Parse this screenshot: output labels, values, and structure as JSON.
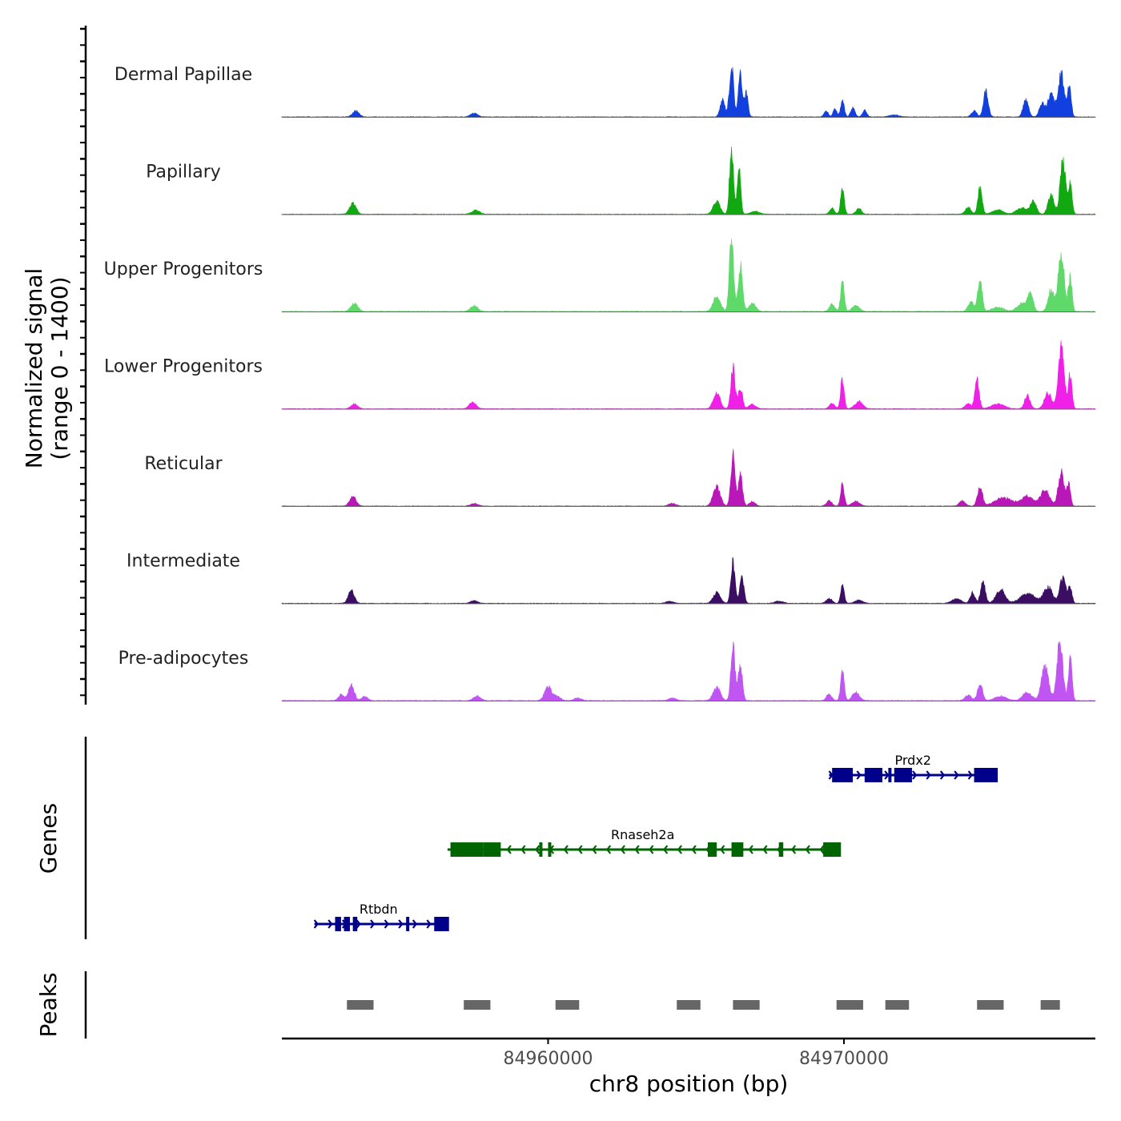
{
  "chart_data": {
    "type": "area",
    "chromosome": "chr8",
    "x_range": [
      84951000,
      84978500
    ],
    "y_range": [
      0,
      1400
    ],
    "ylabel_line1": "Normalized signal",
    "ylabel_line2": "(range 0 - 1400)",
    "xlabel": "chr8 position (bp)",
    "x_ticks": [
      {
        "value": 84960000,
        "label": "84960000"
      },
      {
        "value": 84970000,
        "label": "84970000"
      }
    ],
    "genes_label": "Genes",
    "peaks_label": "Peaks",
    "peak_regions": [
      {
        "start": 84953200,
        "end": 84954100
      },
      {
        "start": 84957150,
        "end": 84958050
      },
      {
        "start": 84960250,
        "end": 84961050
      },
      {
        "start": 84964350,
        "end": 84965150
      },
      {
        "start": 84966250,
        "end": 84967150
      },
      {
        "start": 84969750,
        "end": 84970650
      },
      {
        "start": 84971400,
        "end": 84972200
      },
      {
        "start": 84974500,
        "end": 84975400
      },
      {
        "start": 84976650,
        "end": 84977300
      }
    ],
    "genes": [
      {
        "name": "Prdx2",
        "strand": "+",
        "row": 0,
        "color": "#00008b",
        "start": 84969500,
        "end": 84974900,
        "exons": [
          [
            84969600,
            84970300
          ],
          [
            84970700,
            84971300
          ],
          [
            84971500,
            84971600
          ],
          [
            84971700,
            84972300
          ],
          [
            84974400,
            84975200
          ]
        ]
      },
      {
        "name": "Rnaseh2a",
        "strand": "-",
        "row": 1,
        "color": "#006400",
        "start": 84956600,
        "end": 84969800,
        "exons": [
          [
            84956700,
            84957800
          ],
          [
            84957800,
            84958400
          ],
          [
            84959700,
            84959800
          ],
          [
            84960000,
            84960100
          ],
          [
            84965400,
            84965700
          ],
          [
            84966200,
            84966600
          ],
          [
            84967800,
            84967950
          ],
          [
            84969300,
            84969900
          ]
        ]
      },
      {
        "name": "Rtbdn",
        "strand": "+",
        "row": 2,
        "color": "#00008b",
        "start": 84952100,
        "end": 84956600,
        "exons": [
          [
            84952800,
            84953000
          ],
          [
            84953100,
            84953300
          ],
          [
            84953400,
            84953550
          ],
          [
            84955200,
            84955300
          ],
          [
            84956150,
            84956650
          ]
        ]
      }
    ],
    "series": [
      {
        "name": "Dermal Papillae",
        "color": "#1240de",
        "peaks": [
          {
            "pos": 84953500,
            "h": 115,
            "w": 110
          },
          {
            "pos": 84957500,
            "h": 70,
            "w": 120
          },
          {
            "pos": 84966500,
            "h": 780,
            "w": 70
          },
          {
            "pos": 84966200,
            "h": 980,
            "w": 70
          },
          {
            "pos": 84966700,
            "h": 450,
            "w": 60
          },
          {
            "pos": 84965900,
            "h": 320,
            "w": 80
          },
          {
            "pos": 84969400,
            "h": 110,
            "w": 70
          },
          {
            "pos": 84969700,
            "h": 150,
            "w": 60
          },
          {
            "pos": 84969950,
            "h": 300,
            "w": 60
          },
          {
            "pos": 84970300,
            "h": 180,
            "w": 70
          },
          {
            "pos": 84970700,
            "h": 130,
            "w": 70
          },
          {
            "pos": 84971700,
            "h": 40,
            "w": 150
          },
          {
            "pos": 84974400,
            "h": 110,
            "w": 90
          },
          {
            "pos": 84974800,
            "h": 500,
            "w": 80
          },
          {
            "pos": 84976150,
            "h": 320,
            "w": 90
          },
          {
            "pos": 84976700,
            "h": 250,
            "w": 90
          },
          {
            "pos": 84977000,
            "h": 420,
            "w": 110
          },
          {
            "pos": 84977350,
            "h": 800,
            "w": 100
          },
          {
            "pos": 84977620,
            "h": 620,
            "w": 60
          }
        ]
      },
      {
        "name": "Papillary",
        "color": "#12a812",
        "peaks": [
          {
            "pos": 84953400,
            "h": 210,
            "w": 110
          },
          {
            "pos": 84957550,
            "h": 75,
            "w": 130
          },
          {
            "pos": 84965700,
            "h": 270,
            "w": 110
          },
          {
            "pos": 84966200,
            "h": 1280,
            "w": 65
          },
          {
            "pos": 84966450,
            "h": 850,
            "w": 60
          },
          {
            "pos": 84967000,
            "h": 50,
            "w": 150
          },
          {
            "pos": 84969600,
            "h": 110,
            "w": 80
          },
          {
            "pos": 84969950,
            "h": 480,
            "w": 60
          },
          {
            "pos": 84970500,
            "h": 110,
            "w": 90
          },
          {
            "pos": 84974200,
            "h": 120,
            "w": 100
          },
          {
            "pos": 84974600,
            "h": 500,
            "w": 70
          },
          {
            "pos": 84975200,
            "h": 80,
            "w": 180
          },
          {
            "pos": 84976000,
            "h": 120,
            "w": 170
          },
          {
            "pos": 84976400,
            "h": 250,
            "w": 100
          },
          {
            "pos": 84977000,
            "h": 350,
            "w": 100
          },
          {
            "pos": 84977400,
            "h": 1020,
            "w": 90
          },
          {
            "pos": 84977650,
            "h": 600,
            "w": 60
          }
        ]
      },
      {
        "name": "Upper Progenitors",
        "color": "#5fd96a",
        "peaks": [
          {
            "pos": 84953450,
            "h": 150,
            "w": 120
          },
          {
            "pos": 84957500,
            "h": 110,
            "w": 120
          },
          {
            "pos": 84965700,
            "h": 300,
            "w": 120
          },
          {
            "pos": 84966200,
            "h": 1400,
            "w": 70
          },
          {
            "pos": 84966500,
            "h": 850,
            "w": 70
          },
          {
            "pos": 84966900,
            "h": 150,
            "w": 120
          },
          {
            "pos": 84969600,
            "h": 150,
            "w": 90
          },
          {
            "pos": 84969950,
            "h": 560,
            "w": 60
          },
          {
            "pos": 84970400,
            "h": 120,
            "w": 120
          },
          {
            "pos": 84974300,
            "h": 180,
            "w": 100
          },
          {
            "pos": 84974600,
            "h": 650,
            "w": 70
          },
          {
            "pos": 84975200,
            "h": 80,
            "w": 200
          },
          {
            "pos": 84976000,
            "h": 150,
            "w": 150
          },
          {
            "pos": 84976300,
            "h": 350,
            "w": 90
          },
          {
            "pos": 84977000,
            "h": 400,
            "w": 100
          },
          {
            "pos": 84977350,
            "h": 1100,
            "w": 100
          },
          {
            "pos": 84977650,
            "h": 650,
            "w": 60
          }
        ]
      },
      {
        "name": "Lower Progenitors",
        "color": "#f020e8",
        "peaks": [
          {
            "pos": 84953450,
            "h": 90,
            "w": 110
          },
          {
            "pos": 84957450,
            "h": 120,
            "w": 120
          },
          {
            "pos": 84965700,
            "h": 330,
            "w": 110
          },
          {
            "pos": 84966250,
            "h": 800,
            "w": 70
          },
          {
            "pos": 84966500,
            "h": 400,
            "w": 70
          },
          {
            "pos": 84966900,
            "h": 80,
            "w": 120
          },
          {
            "pos": 84969600,
            "h": 100,
            "w": 90
          },
          {
            "pos": 84969950,
            "h": 580,
            "w": 60
          },
          {
            "pos": 84970500,
            "h": 140,
            "w": 130
          },
          {
            "pos": 84974200,
            "h": 100,
            "w": 100
          },
          {
            "pos": 84974500,
            "h": 550,
            "w": 70
          },
          {
            "pos": 84975200,
            "h": 90,
            "w": 220
          },
          {
            "pos": 84976200,
            "h": 260,
            "w": 90
          },
          {
            "pos": 84976900,
            "h": 300,
            "w": 120
          },
          {
            "pos": 84977350,
            "h": 1120,
            "w": 100
          },
          {
            "pos": 84977650,
            "h": 650,
            "w": 60
          }
        ]
      },
      {
        "name": "Reticular",
        "color": "#ba17b8",
        "peaks": [
          {
            "pos": 84953400,
            "h": 190,
            "w": 110
          },
          {
            "pos": 84957500,
            "h": 50,
            "w": 120
          },
          {
            "pos": 84964200,
            "h": 50,
            "w": 120
          },
          {
            "pos": 84965700,
            "h": 350,
            "w": 120
          },
          {
            "pos": 84966250,
            "h": 1000,
            "w": 70
          },
          {
            "pos": 84966500,
            "h": 600,
            "w": 70
          },
          {
            "pos": 84966900,
            "h": 80,
            "w": 100
          },
          {
            "pos": 84969500,
            "h": 100,
            "w": 90
          },
          {
            "pos": 84969950,
            "h": 430,
            "w": 60
          },
          {
            "pos": 84970400,
            "h": 90,
            "w": 130
          },
          {
            "pos": 84974000,
            "h": 100,
            "w": 100
          },
          {
            "pos": 84974600,
            "h": 380,
            "w": 80
          },
          {
            "pos": 84975400,
            "h": 150,
            "w": 300
          },
          {
            "pos": 84976200,
            "h": 180,
            "w": 200
          },
          {
            "pos": 84976800,
            "h": 300,
            "w": 150
          },
          {
            "pos": 84977350,
            "h": 650,
            "w": 100
          },
          {
            "pos": 84977600,
            "h": 400,
            "w": 60
          }
        ]
      },
      {
        "name": "Intermediate",
        "color": "#3b0e62",
        "peaks": [
          {
            "pos": 84953350,
            "h": 250,
            "w": 100
          },
          {
            "pos": 84957500,
            "h": 50,
            "w": 120
          },
          {
            "pos": 84964100,
            "h": 40,
            "w": 120
          },
          {
            "pos": 84965700,
            "h": 200,
            "w": 120
          },
          {
            "pos": 84966250,
            "h": 780,
            "w": 70
          },
          {
            "pos": 84966550,
            "h": 520,
            "w": 70
          },
          {
            "pos": 84967800,
            "h": 40,
            "w": 150
          },
          {
            "pos": 84969500,
            "h": 90,
            "w": 100
          },
          {
            "pos": 84969950,
            "h": 330,
            "w": 60
          },
          {
            "pos": 84970500,
            "h": 60,
            "w": 130
          },
          {
            "pos": 84973800,
            "h": 90,
            "w": 150
          },
          {
            "pos": 84974350,
            "h": 200,
            "w": 80
          },
          {
            "pos": 84974700,
            "h": 400,
            "w": 80
          },
          {
            "pos": 84975300,
            "h": 260,
            "w": 150
          },
          {
            "pos": 84976200,
            "h": 180,
            "w": 250
          },
          {
            "pos": 84976900,
            "h": 300,
            "w": 150
          },
          {
            "pos": 84977400,
            "h": 500,
            "w": 100
          },
          {
            "pos": 84977650,
            "h": 300,
            "w": 60
          }
        ]
      },
      {
        "name": "Pre-adipocytes",
        "color": "#c155f2",
        "peaks": [
          {
            "pos": 84953000,
            "h": 120,
            "w": 90
          },
          {
            "pos": 84953350,
            "h": 280,
            "w": 100
          },
          {
            "pos": 84953800,
            "h": 80,
            "w": 100
          },
          {
            "pos": 84957600,
            "h": 90,
            "w": 120
          },
          {
            "pos": 84960000,
            "h": 250,
            "w": 120
          },
          {
            "pos": 84960300,
            "h": 80,
            "w": 120
          },
          {
            "pos": 84961000,
            "h": 50,
            "w": 120
          },
          {
            "pos": 84964200,
            "h": 50,
            "w": 120
          },
          {
            "pos": 84965700,
            "h": 250,
            "w": 120
          },
          {
            "pos": 84966250,
            "h": 1050,
            "w": 70
          },
          {
            "pos": 84966500,
            "h": 650,
            "w": 70
          },
          {
            "pos": 84969500,
            "h": 120,
            "w": 90
          },
          {
            "pos": 84969950,
            "h": 550,
            "w": 60
          },
          {
            "pos": 84970400,
            "h": 150,
            "w": 120
          },
          {
            "pos": 84974200,
            "h": 100,
            "w": 110
          },
          {
            "pos": 84974600,
            "h": 350,
            "w": 80
          },
          {
            "pos": 84975300,
            "h": 80,
            "w": 200
          },
          {
            "pos": 84976200,
            "h": 160,
            "w": 150
          },
          {
            "pos": 84976800,
            "h": 650,
            "w": 120
          },
          {
            "pos": 84977300,
            "h": 1100,
            "w": 100
          },
          {
            "pos": 84977650,
            "h": 800,
            "w": 60
          }
        ]
      }
    ]
  }
}
